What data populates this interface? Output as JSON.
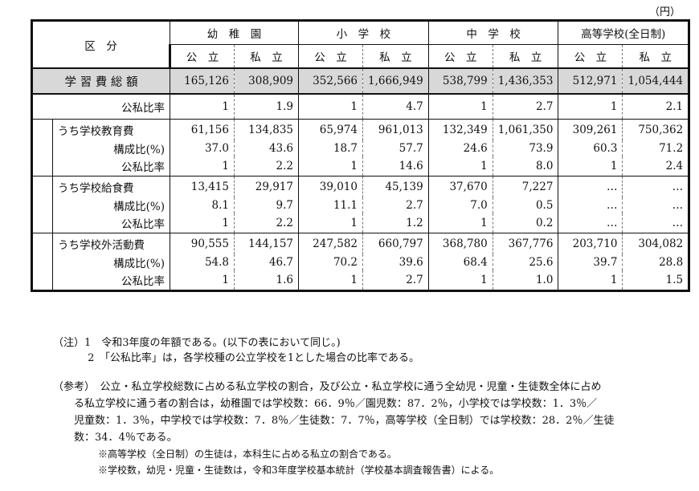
{
  "unit": "（円）",
  "header": {
    "category": "区　分",
    "schools": [
      "幼　稚　園",
      "小　学　校",
      "中　学　校",
      "高等学校(全日制)"
    ],
    "sub": [
      "公　立",
      "私　立",
      "公　立",
      "私　立",
      "公　立",
      "私　立",
      "公　立",
      "私　立"
    ]
  },
  "total": {
    "label": "学 習 費 総 額",
    "values": [
      "165,126",
      "308,909",
      "352,566",
      "1,666,949",
      "538,799",
      "1,436,353",
      "512,971",
      "1,054,444"
    ]
  },
  "total_ratio": {
    "label": "公私比率",
    "values": [
      "1",
      "1.9",
      "1",
      "4.7",
      "1",
      "2.7",
      "1",
      "2.1"
    ]
  },
  "sections": [
    {
      "label": "うち学校教育費",
      "values": [
        "61,156",
        "134,835",
        "65,974",
        "961,013",
        "132,349",
        "1,061,350",
        "309,261",
        "750,362"
      ],
      "comp_label": "構成比(%)",
      "comp": [
        "37.0",
        "43.6",
        "18.7",
        "57.7",
        "24.6",
        "73.9",
        "60.3",
        "71.2"
      ],
      "ratio_label": "公私比率",
      "ratio": [
        "1",
        "2.2",
        "1",
        "14.6",
        "1",
        "8.0",
        "1",
        "2.4"
      ]
    },
    {
      "label": "うち学校給食費",
      "values": [
        "13,415",
        "29,917",
        "39,010",
        "45,139",
        "37,670",
        "7,227",
        "…",
        "…"
      ],
      "comp_label": "構成比(%)",
      "comp": [
        "8.1",
        "9.7",
        "11.1",
        "2.7",
        "7.0",
        "0.5",
        "…",
        "…"
      ],
      "ratio_label": "公私比率",
      "ratio": [
        "1",
        "2.2",
        "1",
        "1.2",
        "1",
        "0.2",
        "…",
        "…"
      ]
    },
    {
      "label": "うち学校外活動費",
      "values": [
        "90,555",
        "144,157",
        "247,582",
        "660,797",
        "368,780",
        "367,776",
        "203,710",
        "304,082"
      ],
      "comp_label": "構成比(%)",
      "comp": [
        "54.8",
        "46.7",
        "70.2",
        "39.6",
        "68.4",
        "25.6",
        "39.7",
        "28.8"
      ],
      "ratio_label": "公私比率",
      "ratio": [
        "1",
        "1.6",
        "1",
        "2.7",
        "1",
        "1.0",
        "1",
        "1.5"
      ]
    }
  ],
  "notes": [
    "（注）1　令和3年度の年額である。(以下の表において同じ。)",
    "　　　 2　「公私比率」は，各学校種の公立学校を1とした場合の比率である。"
  ],
  "reference": {
    "lines": [
      "（参考）　公立・私立学校総数に占める私立学校の割合，及び公立・私立学校に通う全幼児・児童・生徒数全体に占め",
      "る私立学校に通う者の割合は，幼稚園では学校数：66．9％／園児数：87．2％，小学校では学校数：1．3％／",
      "児童数：1．3％，中学校では学校数：7．8％／生徒数：7．7％，高等学校（全日制）では学校数：28．2％／生徒",
      "数：34．4％である。"
    ],
    "footnotes": [
      "※高等学校（全日制）の生徒は，本科生に占める私立の割合である。",
      "※学校数，幼児・児童・生徒数は，令和3年度学校基本統計（学校基本調査報告書）による。"
    ]
  }
}
